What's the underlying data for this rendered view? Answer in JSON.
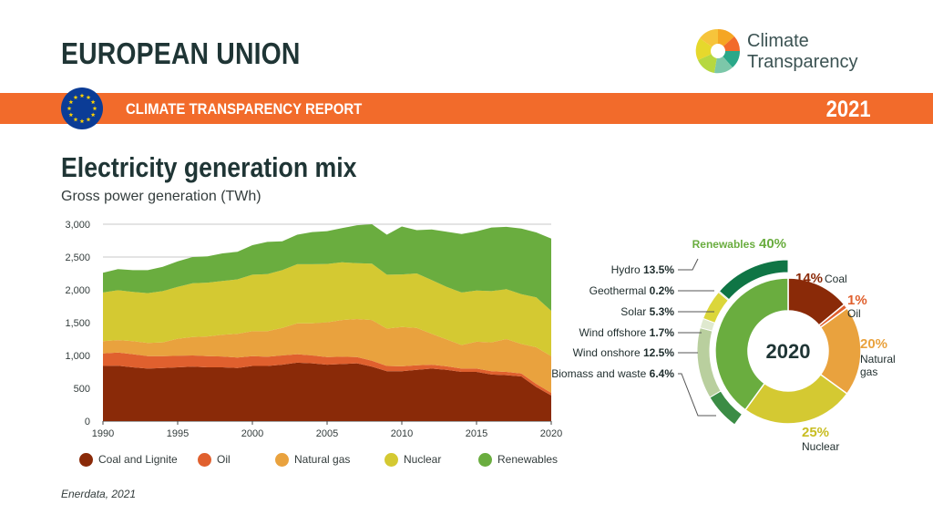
{
  "header": {
    "country": "EUROPEAN UNION",
    "logo_line1": "Climate",
    "logo_line2": "Transparency",
    "banner_label": "CLIMATE TRANSPARENCY REPORT",
    "year": "2021"
  },
  "chart": {
    "title": "Electricity generation mix",
    "subtitle": "Gross power generation (TWh)"
  },
  "source": "Enerdata, 2021",
  "colors": {
    "orange_banner": "#f26b2b",
    "eu_blue": "#0b3c96",
    "eu_star": "#ffd200",
    "coal": "#8a2a08",
    "oil": "#e0602e",
    "gas": "#e9a23e",
    "nuclear": "#d4c932",
    "renewables": "#6aad3f"
  },
  "chart_data": [
    {
      "type": "area",
      "stacked": true,
      "x": [
        1990,
        1991,
        1992,
        1993,
        1994,
        1995,
        1996,
        1997,
        1998,
        1999,
        2000,
        2001,
        2002,
        2003,
        2004,
        2005,
        2006,
        2007,
        2008,
        2009,
        2010,
        2011,
        2012,
        2013,
        2014,
        2015,
        2016,
        2017,
        2018,
        2019,
        2020
      ],
      "series": [
        {
          "name": "Coal and Lignite",
          "color": "#8a2a08",
          "values": [
            840,
            845,
            820,
            800,
            810,
            820,
            830,
            820,
            820,
            810,
            840,
            840,
            860,
            890,
            880,
            860,
            870,
            880,
            830,
            760,
            760,
            780,
            800,
            780,
            750,
            750,
            710,
            700,
            680,
            520,
            390
          ]
        },
        {
          "name": "Oil",
          "color": "#e0602e",
          "values": [
            190,
            200,
            200,
            190,
            180,
            175,
            170,
            170,
            165,
            160,
            150,
            140,
            140,
            130,
            120,
            115,
            110,
            95,
            90,
            80,
            75,
            70,
            60,
            55,
            50,
            50,
            50,
            50,
            45,
            45,
            40
          ]
        },
        {
          "name": "Natural gas",
          "color": "#e9a23e",
          "values": [
            190,
            190,
            200,
            200,
            210,
            260,
            280,
            300,
            330,
            360,
            380,
            390,
            420,
            470,
            490,
            530,
            560,
            580,
            620,
            570,
            600,
            570,
            470,
            410,
            360,
            410,
            440,
            500,
            450,
            560,
            560
          ]
        },
        {
          "name": "Nuclear",
          "color": "#d4c932",
          "values": [
            740,
            760,
            750,
            760,
            780,
            790,
            820,
            820,
            820,
            830,
            860,
            870,
            880,
            900,
            900,
            890,
            880,
            850,
            860,
            820,
            800,
            830,
            820,
            800,
            800,
            780,
            780,
            760,
            760,
            760,
            690
          ]
        },
        {
          "name": "Renewables",
          "color": "#6aad3f",
          "values": [
            300,
            320,
            330,
            350,
            370,
            390,
            400,
            400,
            420,
            420,
            450,
            490,
            440,
            450,
            490,
            500,
            520,
            580,
            600,
            610,
            730,
            660,
            770,
            840,
            890,
            900,
            970,
            950,
            1000,
            990,
            1100
          ]
        }
      ],
      "ylim": [
        0,
        3000
      ],
      "yticks": [
        0,
        500,
        1000,
        1500,
        2000,
        2500,
        3000
      ],
      "ytick_labels": [
        "0",
        "500",
        "1,000",
        "1,500",
        "2,000",
        "2,500",
        "3,000"
      ],
      "xticks": [
        1990,
        1995,
        2000,
        2005,
        2010,
        2015,
        2020
      ],
      "xtick_labels": [
        "1990",
        "1995",
        "2000",
        "2005",
        "2010",
        "2015",
        "2020"
      ],
      "grid": true,
      "legend": "bottom"
    },
    {
      "type": "pie",
      "donut": true,
      "center_label": "2020",
      "slices": [
        {
          "name": "Coal",
          "pct_label": "14%",
          "value": 14,
          "color": "#8a2a08"
        },
        {
          "name": "Oil",
          "pct_label": "1%",
          "value": 1,
          "color": "#e0602e"
        },
        {
          "name": "Natural gas",
          "name_line1": "Natural",
          "name_line2": "gas",
          "pct_label": "20%",
          "value": 20,
          "color": "#e9a23e"
        },
        {
          "name": "Nuclear",
          "pct_label": "25%",
          "value": 25,
          "color": "#d4c932"
        },
        {
          "name": "Renewables",
          "pct_label": "40%",
          "value": 40,
          "color": "#6aad3f"
        }
      ],
      "renewables_total_label": "Renewables",
      "renewables_total_pct": "40%",
      "renewables_breakdown": [
        {
          "name": "Biomass and waste",
          "pct_label": "6.4%",
          "value": 6.4,
          "color": "#3b8c45"
        },
        {
          "name": "Wind onshore",
          "pct_label": "12.5%",
          "value": 12.5,
          "color": "#b9cf9e"
        },
        {
          "name": "Wind offshore",
          "pct_label": "1.7%",
          "value": 1.7,
          "color": "#dfe9cf"
        },
        {
          "name": "Solar",
          "pct_label": "5.3%",
          "value": 5.3,
          "color": "#dbd63a"
        },
        {
          "name": "Geothermal",
          "pct_label": "0.2%",
          "value": 0.2,
          "color": "#7a9b3f"
        },
        {
          "name": "Hydro",
          "pct_label": "13.5%",
          "value": 13.5,
          "color": "#0f7545"
        }
      ]
    }
  ]
}
